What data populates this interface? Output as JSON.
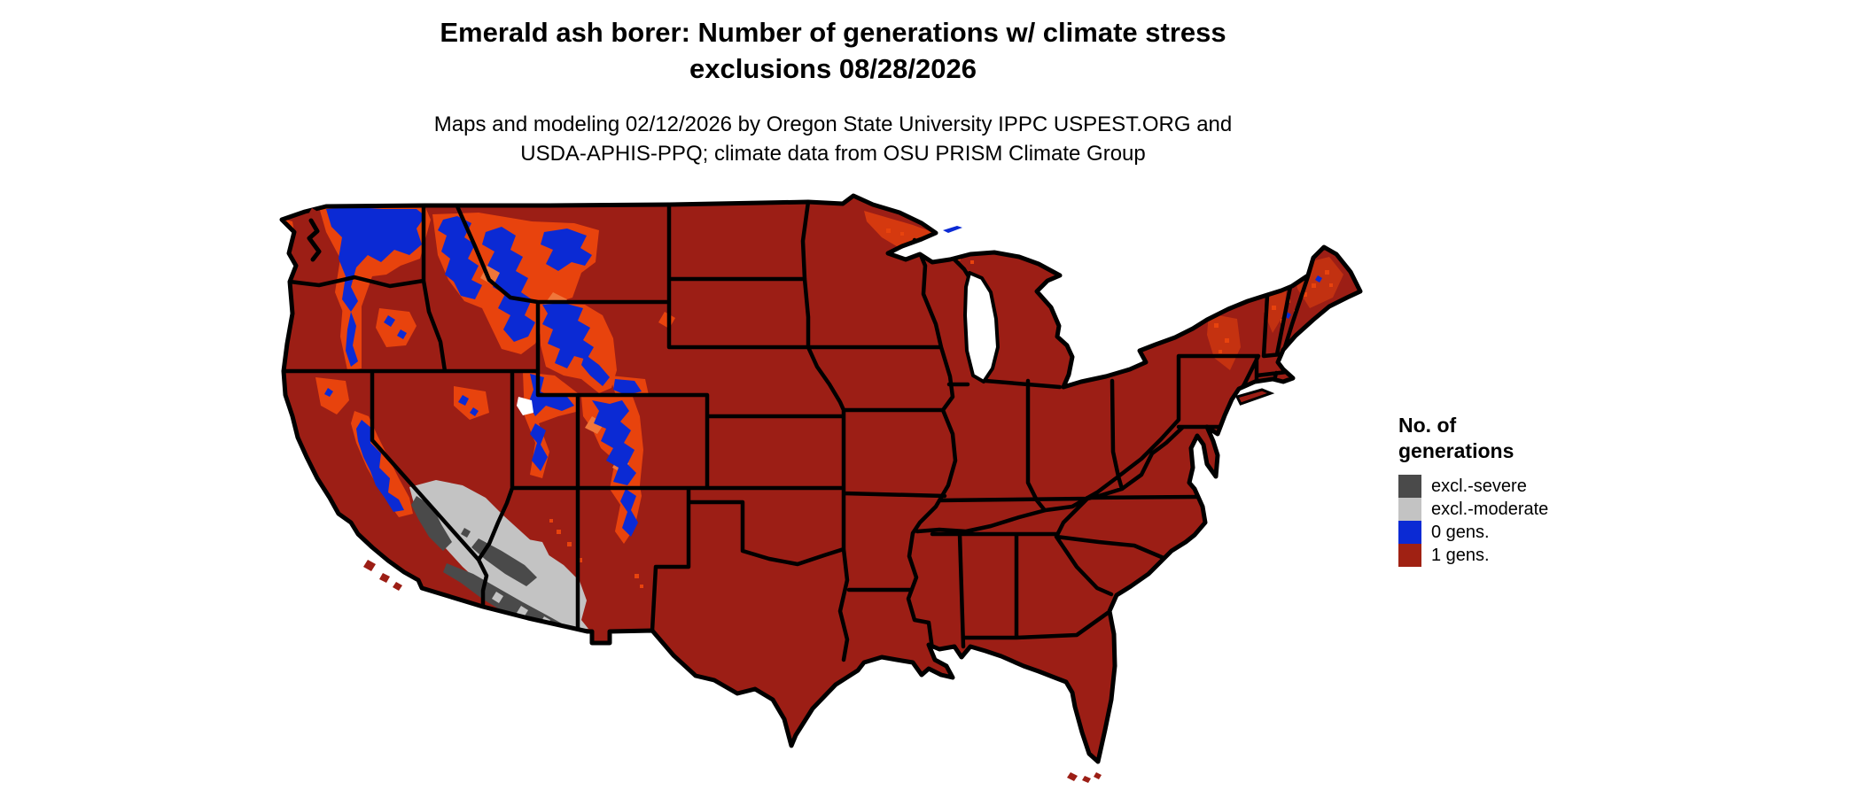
{
  "title": {
    "line1": "Emerald ash borer: Number of generations w/ climate stress",
    "line2": "exclusions 08/28/2026"
  },
  "subtitle": {
    "line1": "Maps and modeling 02/12/2026 by Oregon State University IPPC USPEST.ORG and",
    "line2": "USDA-APHIS-PPQ; climate data from OSU PRISM Climate Group"
  },
  "legend": {
    "heading_line1": "No. of",
    "heading_line2": "generations",
    "items": [
      {
        "label": "excl.-severe",
        "color": "#4A4A4A"
      },
      {
        "label": "excl.-moderate",
        "color": "#C3C3C3"
      },
      {
        "label": "0 gens.",
        "color": "#0B2AD4"
      },
      {
        "label": "1 gens.",
        "color": "#A02113"
      }
    ]
  },
  "colors": {
    "gen1": "#9C1E15",
    "gen0": "#0B2AD4",
    "excl_severe": "#4A4A4A",
    "excl_moderate": "#C3C3C3",
    "transition": "#E8430D",
    "transition_light": "#F0763A",
    "border": "#000000",
    "water": "#FFFFFF"
  },
  "map": {
    "area": "Continental United States (lower 48 states)",
    "dominant_category": "1 gens.",
    "zero_gen_areas": "Cascades, Northern Rockies (ID/MT/WY), Sierra Nevada, Wasatch/Uinta, Colorado Rockies",
    "exclusion_areas": "SE California, southern Nevada and southern/western Arizona deserts"
  }
}
